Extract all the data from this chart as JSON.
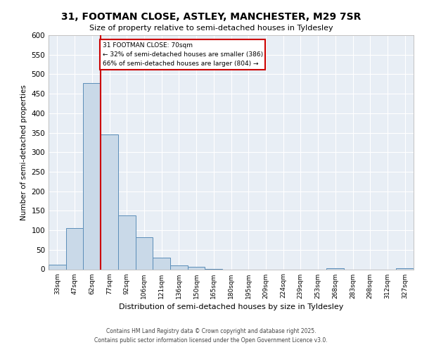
{
  "title_line1": "31, FOOTMAN CLOSE, ASTLEY, MANCHESTER, M29 7SR",
  "title_line2": "Size of property relative to semi-detached houses in Tyldesley",
  "xlabel": "Distribution of semi-detached houses by size in Tyldesley",
  "ylabel": "Number of semi-detached properties",
  "categories": [
    "33sqm",
    "47sqm",
    "62sqm",
    "77sqm",
    "92sqm",
    "106sqm",
    "121sqm",
    "136sqm",
    "150sqm",
    "165sqm",
    "180sqm",
    "195sqm",
    "209sqm",
    "224sqm",
    "239sqm",
    "253sqm",
    "268sqm",
    "283sqm",
    "298sqm",
    "312sqm",
    "327sqm"
  ],
  "values": [
    12,
    105,
    478,
    345,
    138,
    82,
    29,
    10,
    6,
    1,
    0,
    0,
    0,
    0,
    0,
    0,
    2,
    0,
    0,
    0,
    3
  ],
  "bar_color": "#c9d9e8",
  "bar_edge_color": "#5b8db8",
  "annotation_box_color": "#cc0000",
  "vline_x_index": 2.5,
  "annotation_title": "31 FOOTMAN CLOSE: 70sqm",
  "annotation_line1": "← 32% of semi-detached houses are smaller (386)",
  "annotation_line2": "66% of semi-detached houses are larger (804) →",
  "vline_color": "#cc0000",
  "ylim": [
    0,
    600
  ],
  "yticks": [
    0,
    50,
    100,
    150,
    200,
    250,
    300,
    350,
    400,
    450,
    500,
    550,
    600
  ],
  "bg_color": "#e8eef5",
  "footer_line1": "Contains HM Land Registry data © Crown copyright and database right 2025.",
  "footer_line2": "Contains public sector information licensed under the Open Government Licence v3.0."
}
